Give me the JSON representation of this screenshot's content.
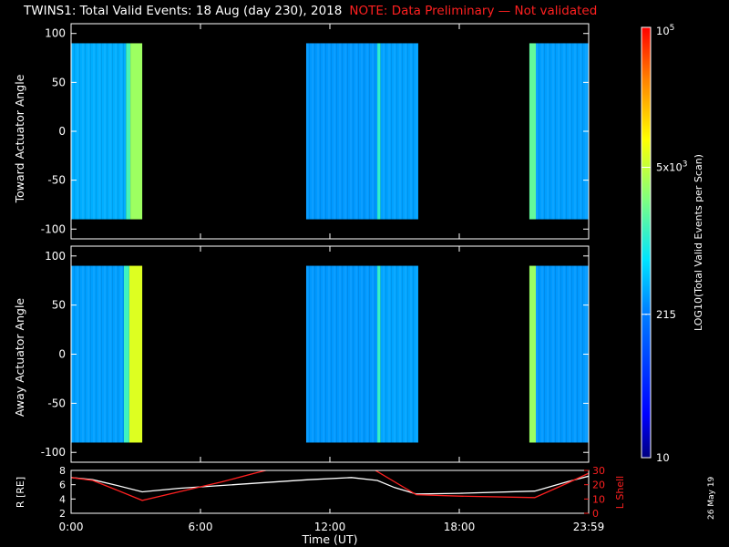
{
  "title": {
    "main": "TWINS1: Total Valid Events: 18 Aug (day 230), 2018",
    "note": "NOTE: Data Preliminary — Not validated"
  },
  "plot_date": "26 May 19",
  "colorbar": {
    "label": "LOG10(Total Valid Events per Scan)",
    "ticks": [
      {
        "value": 10,
        "label": "10"
      },
      {
        "value": 215,
        "label": "215"
      },
      {
        "value": 5000,
        "label": "5x10^3"
      },
      {
        "value": 100000,
        "label": "10^5"
      }
    ],
    "range": [
      10,
      100000
    ],
    "scale": "log"
  },
  "chart_data": [
    {
      "type": "heatmap",
      "panel": "toward",
      "ylabel": "Toward Actuator Angle",
      "ylim": [
        -110,
        110
      ],
      "yticks": [
        100,
        50,
        0,
        -50,
        -100
      ],
      "xlim": [
        0,
        24
      ],
      "data_y_range": [
        -90,
        90
      ],
      "blocks": [
        {
          "start": 0.0,
          "end": 2.55,
          "level": 380
        },
        {
          "start": 2.55,
          "end": 2.75,
          "level": 1400
        },
        {
          "start": 2.75,
          "end": 3.3,
          "level": 3400
        },
        {
          "start": 10.9,
          "end": 14.2,
          "level": 300
        },
        {
          "start": 14.2,
          "end": 14.35,
          "level": 1100
        },
        {
          "start": 14.35,
          "end": 16.1,
          "level": 330
        },
        {
          "start": 21.25,
          "end": 21.55,
          "level": 1900
        },
        {
          "start": 21.55,
          "end": 24.0,
          "level": 320
        }
      ]
    },
    {
      "type": "heatmap",
      "panel": "away",
      "ylabel": "Away Actuator Angle",
      "ylim": [
        -110,
        110
      ],
      "yticks": [
        100,
        50,
        0,
        -50,
        -100
      ],
      "xlim": [
        0,
        24
      ],
      "data_y_range": [
        -90,
        90
      ],
      "blocks": [
        {
          "start": 0.0,
          "end": 2.45,
          "level": 320
        },
        {
          "start": 2.45,
          "end": 2.7,
          "level": 1300
        },
        {
          "start": 2.7,
          "end": 3.3,
          "level": 6500
        },
        {
          "start": 10.9,
          "end": 14.2,
          "level": 300
        },
        {
          "start": 14.2,
          "end": 14.35,
          "level": 1200
        },
        {
          "start": 14.35,
          "end": 16.1,
          "level": 340
        },
        {
          "start": 21.25,
          "end": 21.55,
          "level": 3300
        },
        {
          "start": 21.55,
          "end": 24.0,
          "level": 300
        }
      ]
    },
    {
      "type": "line",
      "panel": "orbit",
      "xlabel": "Time (UT)",
      "xlim": [
        0,
        24
      ],
      "x_tick_labels": [
        "0:00",
        "6:00",
        "12:00",
        "18:00",
        "23:59"
      ],
      "x_tick_values": [
        0,
        6,
        12,
        18,
        24
      ],
      "left_axis": {
        "label": "R [RE]",
        "ylim": [
          2,
          8
        ],
        "ticks": [
          2,
          4,
          6,
          8
        ]
      },
      "right_axis": {
        "label": "L Shell",
        "ylim": [
          0,
          30
        ],
        "ticks": [
          0,
          10,
          20,
          30
        ],
        "color": "#ff2020"
      },
      "series": [
        {
          "axis": "left",
          "color": "#ffffff",
          "x": [
            0,
            1,
            2,
            3.3,
            5,
            7,
            9,
            11,
            13,
            14.2,
            15,
            16,
            18,
            21.5,
            23,
            24
          ],
          "y": [
            7.0,
            6.7,
            6.0,
            5.0,
            5.5,
            5.9,
            6.3,
            6.7,
            7.0,
            6.6,
            5.6,
            4.7,
            4.8,
            5.1,
            6.4,
            7.2
          ]
        },
        {
          "axis": "right",
          "color": "#ff2020",
          "x": [
            0,
            1,
            2,
            3.3,
            5,
            7,
            8.5,
            9.3,
            14,
            15,
            16,
            18,
            21.5,
            23,
            24
          ],
          "y": [
            25,
            23,
            17,
            9,
            15,
            22,
            28,
            31,
            31,
            22,
            13,
            12,
            11,
            21,
            28
          ]
        }
      ]
    }
  ]
}
